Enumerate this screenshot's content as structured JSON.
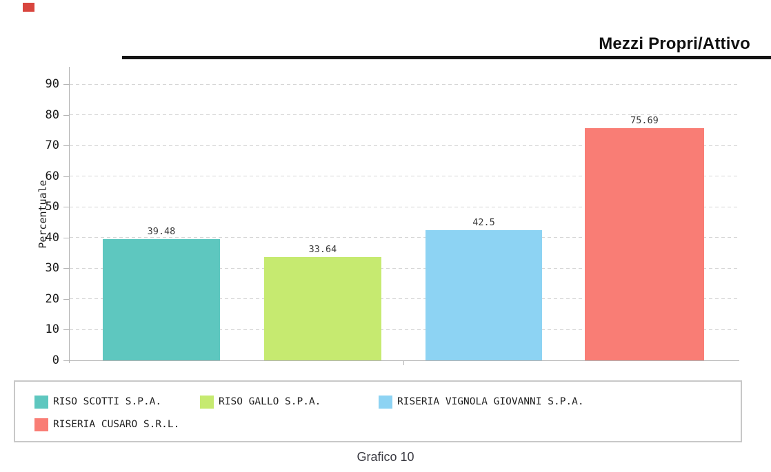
{
  "page": {
    "caption": "Grafico 10",
    "background_color": "#ffffff",
    "corner_mark_color": "#d8453e"
  },
  "header": {
    "title": "Mezzi Propri/Attivo",
    "rule_color": "#141414"
  },
  "chart_data": {
    "type": "bar",
    "title": "Mezzi Propri/Attivo",
    "xlabel": "",
    "ylabel": "Percentuale",
    "ylim": [
      0,
      95
    ],
    "yticks": [
      0,
      10,
      20,
      30,
      40,
      50,
      60,
      70,
      80,
      90
    ],
    "grid": "horizontal-dashed",
    "grid_color": "#d4d4d4",
    "axis_color": "#b3b3b3",
    "legend_position": "bottom-box",
    "categories": [
      "RISO SCOTTI S.P.A.",
      "RISO GALLO S.P.A.",
      "RISERIA VIGNOLA GIOVANNI S.P.A.",
      "RISERIA CUSARO S.R.L."
    ],
    "values": [
      39.48,
      33.64,
      42.5,
      75.69
    ],
    "value_labels": [
      "39.48",
      "33.64",
      "42.5",
      "75.69"
    ],
    "colors": [
      "#5ec7bf",
      "#c6ea70",
      "#8dd3f3",
      "#f97d75"
    ]
  },
  "legend": {
    "items": [
      {
        "label": "RISO SCOTTI S.P.A.",
        "color": "#5ec7bf"
      },
      {
        "label": "RISO GALLO S.P.A.",
        "color": "#c6ea70"
      },
      {
        "label": "RISERIA VIGNOLA GIOVANNI S.P.A.",
        "color": "#8dd3f3"
      },
      {
        "label": "RISERIA CUSARO S.R.L.",
        "color": "#f97d75"
      }
    ]
  }
}
